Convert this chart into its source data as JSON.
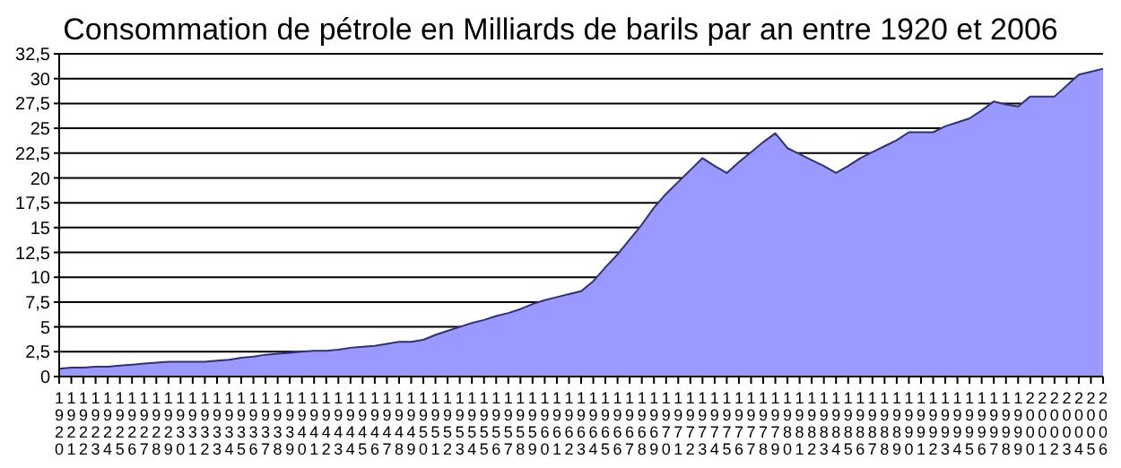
{
  "chart_data": {
    "type": "area",
    "title": "Consommation de pétrole en Milliards de barils par an entre 1920 et 2006",
    "categories": [
      "1920",
      "1921",
      "1922",
      "1923",
      "1924",
      "1925",
      "1926",
      "1927",
      "1928",
      "1929",
      "1930",
      "1931",
      "1932",
      "1933",
      "1934",
      "1935",
      "1936",
      "1937",
      "1938",
      "1939",
      "1940",
      "1941",
      "1942",
      "1943",
      "1944",
      "1945",
      "1946",
      "1947",
      "1948",
      "1949",
      "1950",
      "1951",
      "1952",
      "1953",
      "1954",
      "1955",
      "1956",
      "1957",
      "1958",
      "1959",
      "1960",
      "1961",
      "1962",
      "1963",
      "1964",
      "1965",
      "1966",
      "1967",
      "1968",
      "1969",
      "1970",
      "1971",
      "1972",
      "1973",
      "1974",
      "1975",
      "1976",
      "1977",
      "1978",
      "1979",
      "1980",
      "1981",
      "1982",
      "1983",
      "1984",
      "1985",
      "1986",
      "1987",
      "1988",
      "1989",
      "1990",
      "1991",
      "1992",
      "1993",
      "1994",
      "1995",
      "1996",
      "1997",
      "1998",
      "1999",
      "2000",
      "2001",
      "2002",
      "2003",
      "2004",
      "2005",
      "2006"
    ],
    "series": [
      {
        "color": "#9999ff",
        "values": [
          0.8,
          0.9,
          0.9,
          1.0,
          1.0,
          1.1,
          1.2,
          1.3,
          1.4,
          1.5,
          1.5,
          1.5,
          1.5,
          1.6,
          1.7,
          1.9,
          2.0,
          2.2,
          2.3,
          2.4,
          2.5,
          2.6,
          2.6,
          2.7,
          2.9,
          3.0,
          3.1,
          3.3,
          3.5,
          3.5,
          3.7,
          4.2,
          4.6,
          5.0,
          5.4,
          5.7,
          6.1,
          6.4,
          6.8,
          7.3,
          7.7,
          8.0,
          8.3,
          8.6,
          9.6,
          11.0,
          12.3,
          13.8,
          15.3,
          17.0,
          18.4,
          19.6,
          20.8,
          22.0,
          21.2,
          20.5,
          21.6,
          22.6,
          23.6,
          24.5,
          23.0,
          22.4,
          21.8,
          21.2,
          20.5,
          21.2,
          22.0,
          22.6,
          23.2,
          23.8,
          24.6,
          24.6,
          24.6,
          25.2,
          25.6,
          26.0,
          26.8,
          27.7,
          27.4,
          27.2,
          28.2,
          28.2,
          28.2,
          29.3,
          30.4,
          30.7,
          31.0
        ]
      }
    ],
    "ylim": [
      0,
      32.5
    ],
    "yticks": [
      0,
      {
        "value": 2.5,
        "label": "2,5"
      },
      5,
      {
        "value": 7.5,
        "label": "7,5"
      },
      10,
      {
        "value": 12.5,
        "label": "12,5"
      },
      15,
      {
        "value": 17.5,
        "label": "17,5"
      },
      20,
      {
        "value": 22.5,
        "label": "22,5"
      },
      25,
      {
        "value": 27.5,
        "label": "27,5"
      },
      30,
      {
        "value": 32.5,
        "label": "32,5"
      }
    ],
    "grid": "y",
    "legend": false
  }
}
